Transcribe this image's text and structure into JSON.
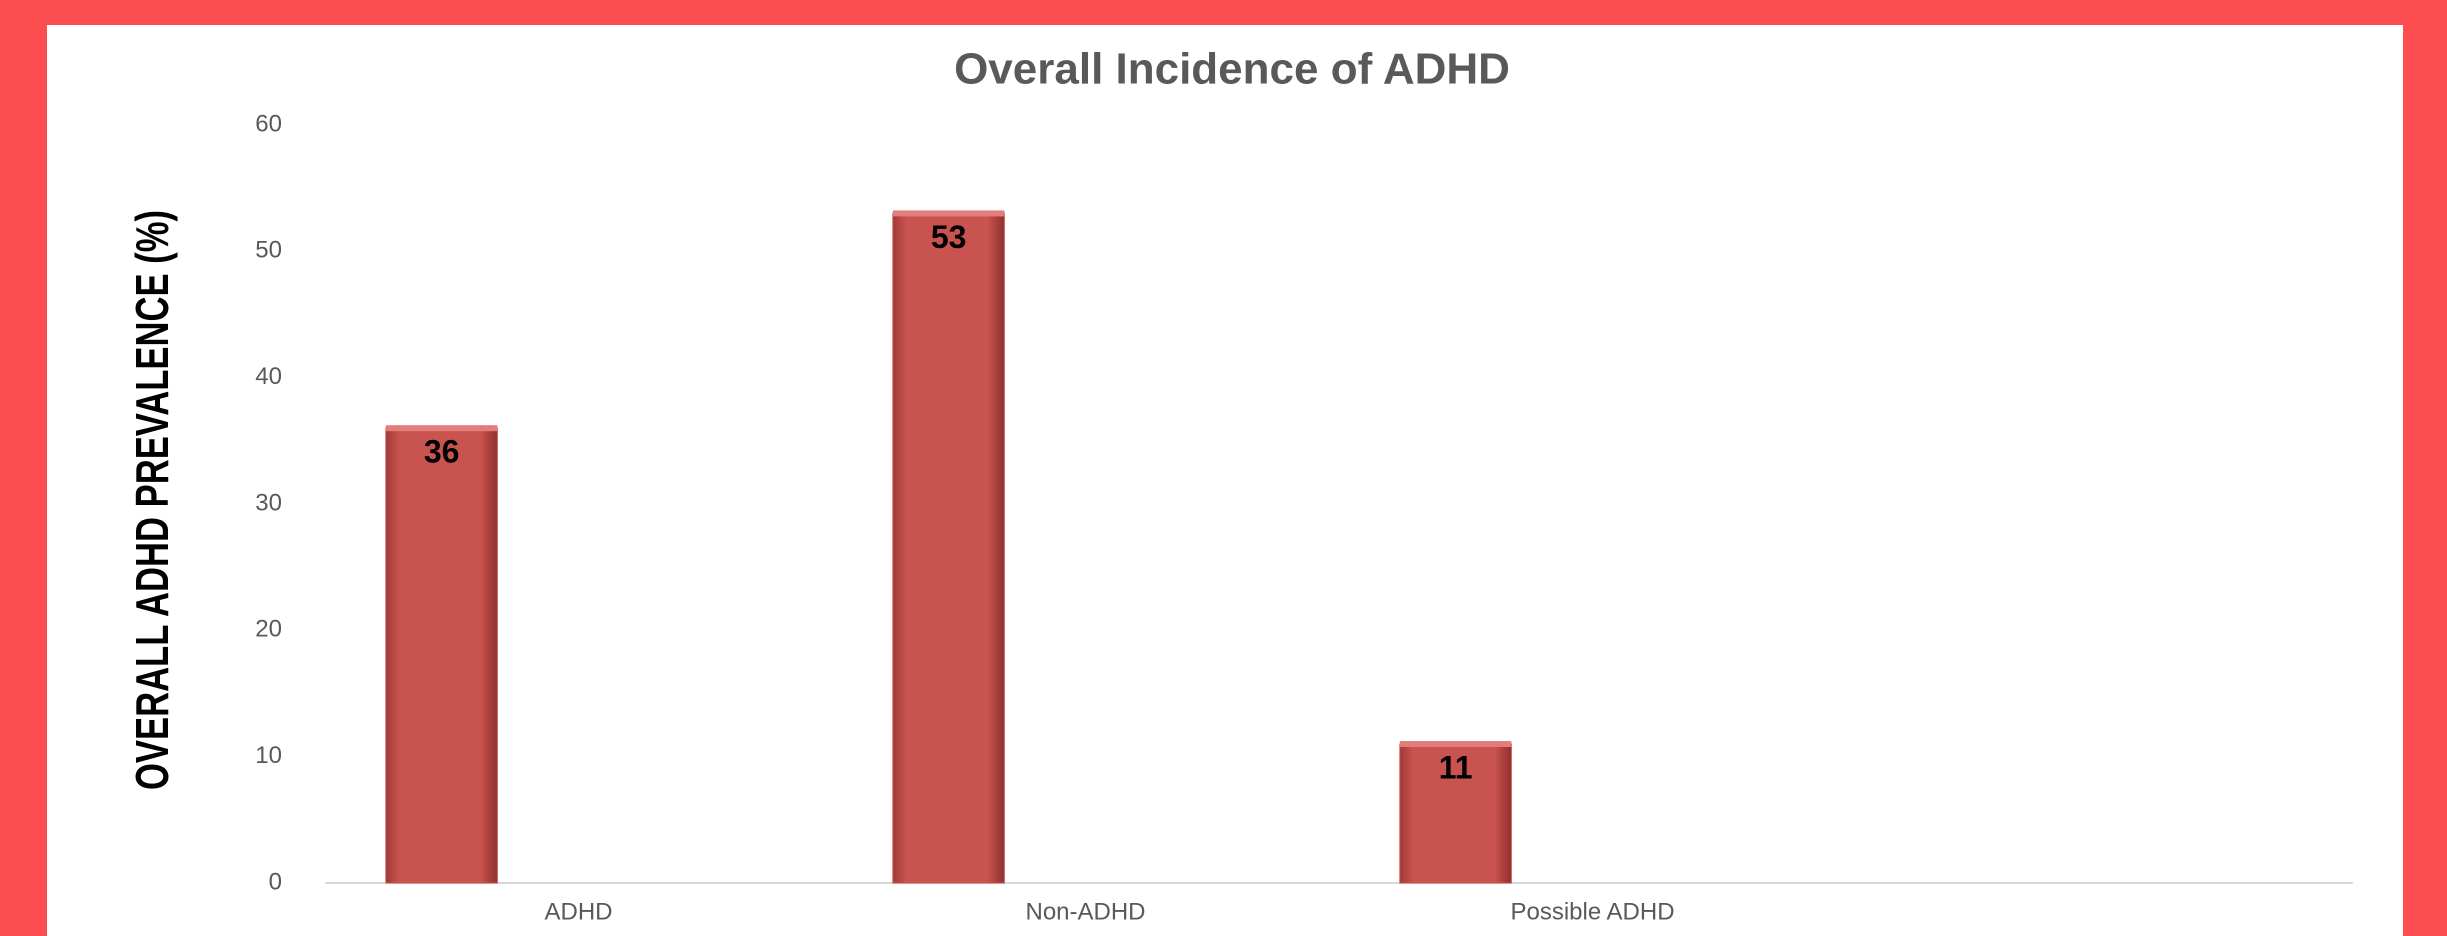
{
  "chart_data": {
    "type": "bar",
    "title": "Overall Incidence of ADHD",
    "y_label": "OVERALL ADHD PREVALENCE (%)",
    "categories": [
      "ADHD",
      "Non-ADHD",
      "Possible ADHD",
      null
    ],
    "values": [
      36,
      53,
      11,
      null
    ],
    "color": "#c9534f",
    "ylim": [
      0,
      60
    ],
    "yticks": [
      0,
      10,
      20,
      30,
      40,
      50,
      60
    ],
    "grid": false
  }
}
